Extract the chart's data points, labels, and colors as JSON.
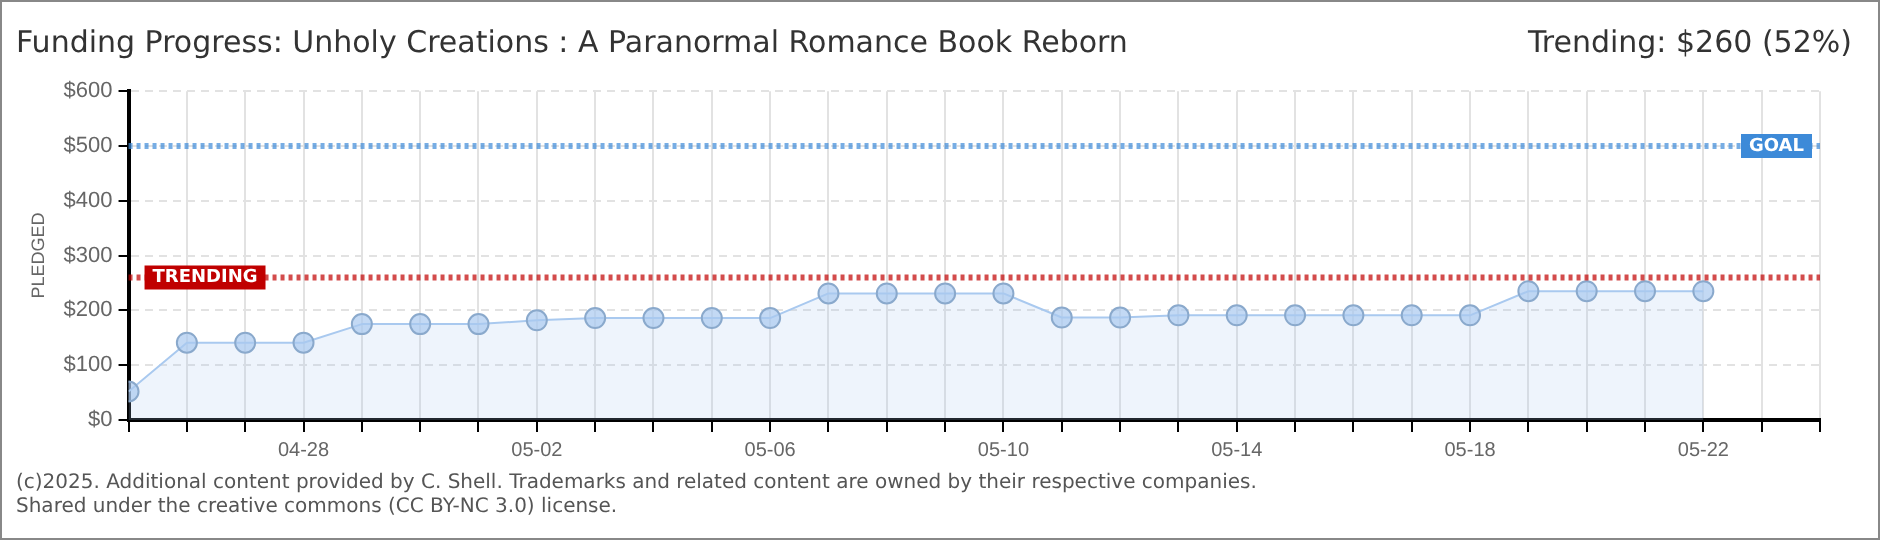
{
  "chart_data": {
    "type": "area",
    "title": "Funding Progress: Unholy Creations : A Paranormal Romance Book Reborn",
    "subtitle": "Trending: $260 (52%)",
    "ylabel": "PLEDGED",
    "x": [
      "--04-25",
      "--04-26",
      "--04-27",
      "--04-28",
      "--04-29",
      "--04-30",
      "--05-01",
      "--05-02",
      "--05-03",
      "--05-04",
      "--05-05",
      "--05-06",
      "--05-07",
      "--05-08",
      "--05-09",
      "--05-10",
      "--05-11",
      "--05-12",
      "--05-13",
      "--05-14",
      "--05-15",
      "--05-16",
      "--05-17",
      "--05-18",
      "--05-19",
      "--05-20",
      "--05-21",
      "--05-22"
    ],
    "series": [
      {
        "color": "#a9c9ef",
        "values": [
          52,
          141,
          141,
          141,
          175,
          175,
          175,
          182,
          186,
          186,
          186,
          186,
          231,
          231,
          231,
          231,
          187,
          187,
          191,
          191,
          191,
          191,
          191,
          191,
          235,
          235,
          235,
          235
        ]
      }
    ],
    "xlim": [
      "--04-25",
      "--05-24"
    ],
    "xticks": [
      {
        "value": "--04-25",
        "label": null
      },
      {
        "value": "--04-26",
        "label": null
      },
      {
        "value": "--04-27",
        "label": null
      },
      {
        "value": "--04-28",
        "label": "04-28"
      },
      {
        "value": "--04-29",
        "label": null
      },
      {
        "value": "--04-30",
        "label": null
      },
      {
        "value": "--05-01",
        "label": null
      },
      {
        "value": "--05-02",
        "label": "05-02"
      },
      {
        "value": "--05-03",
        "label": null
      },
      {
        "value": "--05-04",
        "label": null
      },
      {
        "value": "--05-05",
        "label": null
      },
      {
        "value": "--05-06",
        "label": "05-06"
      },
      {
        "value": "--05-07",
        "label": null
      },
      {
        "value": "--05-08",
        "label": null
      },
      {
        "value": "--05-09",
        "label": null
      },
      {
        "value": "--05-10",
        "label": "05-10"
      },
      {
        "value": "--05-11",
        "label": null
      },
      {
        "value": "--05-12",
        "label": null
      },
      {
        "value": "--05-13",
        "label": null
      },
      {
        "value": "--05-14",
        "label": "05-14"
      },
      {
        "value": "--05-15",
        "label": null
      },
      {
        "value": "--05-16",
        "label": null
      },
      {
        "value": "--05-17",
        "label": null
      },
      {
        "value": "--05-18",
        "label": "05-18"
      },
      {
        "value": "--05-19",
        "label": null
      },
      {
        "value": "--05-20",
        "label": null
      },
      {
        "value": "--05-21",
        "label": null
      },
      {
        "value": "--05-22",
        "label": "05-22"
      },
      {
        "value": "--05-23",
        "label": null
      },
      {
        "value": "--05-24",
        "label": null
      }
    ],
    "ylim": [
      0,
      600
    ],
    "yticks": [
      {
        "value": 0,
        "label": "$0"
      },
      {
        "value": 100,
        "label": "$100"
      },
      {
        "value": 200,
        "label": "$200"
      },
      {
        "value": 300,
        "label": "$300"
      },
      {
        "value": 400,
        "label": "$400"
      },
      {
        "value": 500,
        "label": "$500"
      },
      {
        "value": 600,
        "label": "$600"
      }
    ],
    "ref_lines": [
      {
        "axis": "y",
        "value": 500,
        "label": "GOAL",
        "color": "#3d8ad8",
        "line_style": "dotted"
      },
      {
        "axis": "y",
        "value": 260,
        "label": "TRENDING",
        "color": "#c00000",
        "line_style": "dotted"
      }
    ],
    "annotations": [
      "(c)2025. Additional content provided by C. Shell. Trademarks and related content are owned by their respective companies.",
      "Shared under the creative commons (CC BY-NC 3.0) license."
    ],
    "grid": true,
    "legend": false,
    "marker": "circle",
    "line_style": "solid"
  }
}
